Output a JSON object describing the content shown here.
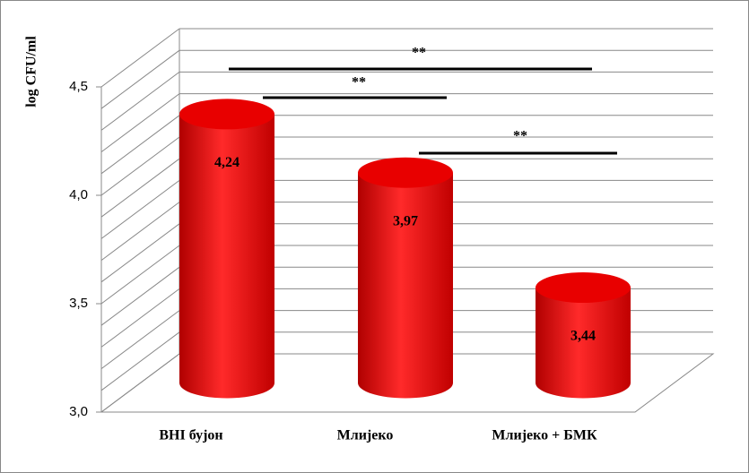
{
  "chart_data": {
    "type": "bar3d",
    "y_label": "log CFU/ml",
    "categories": [
      "BHI бујон",
      "Млијеко",
      "Млијеко + БМК"
    ],
    "values": [
      4.24,
      3.97,
      3.44
    ],
    "value_labels": [
      "4,24",
      "3,97",
      "3,44"
    ],
    "color": "#ff1a1a",
    "ylim": [
      3.0,
      4.5
    ],
    "yticks": [
      {
        "value": 3.0,
        "label": "3,0"
      },
      {
        "value": 3.5,
        "label": "3,5"
      },
      {
        "value": 4.0,
        "label": "4,0"
      },
      {
        "value": 4.5,
        "label": "4,5"
      }
    ],
    "gridlines": [
      3.0,
      3.1,
      3.2,
      3.3,
      3.4,
      3.5,
      3.6,
      3.7,
      3.8,
      3.9,
      4.0,
      4.1,
      4.2,
      4.3,
      4.4,
      4.5
    ],
    "grid": true,
    "annotations": [
      "**",
      "**",
      "**"
    ]
  }
}
